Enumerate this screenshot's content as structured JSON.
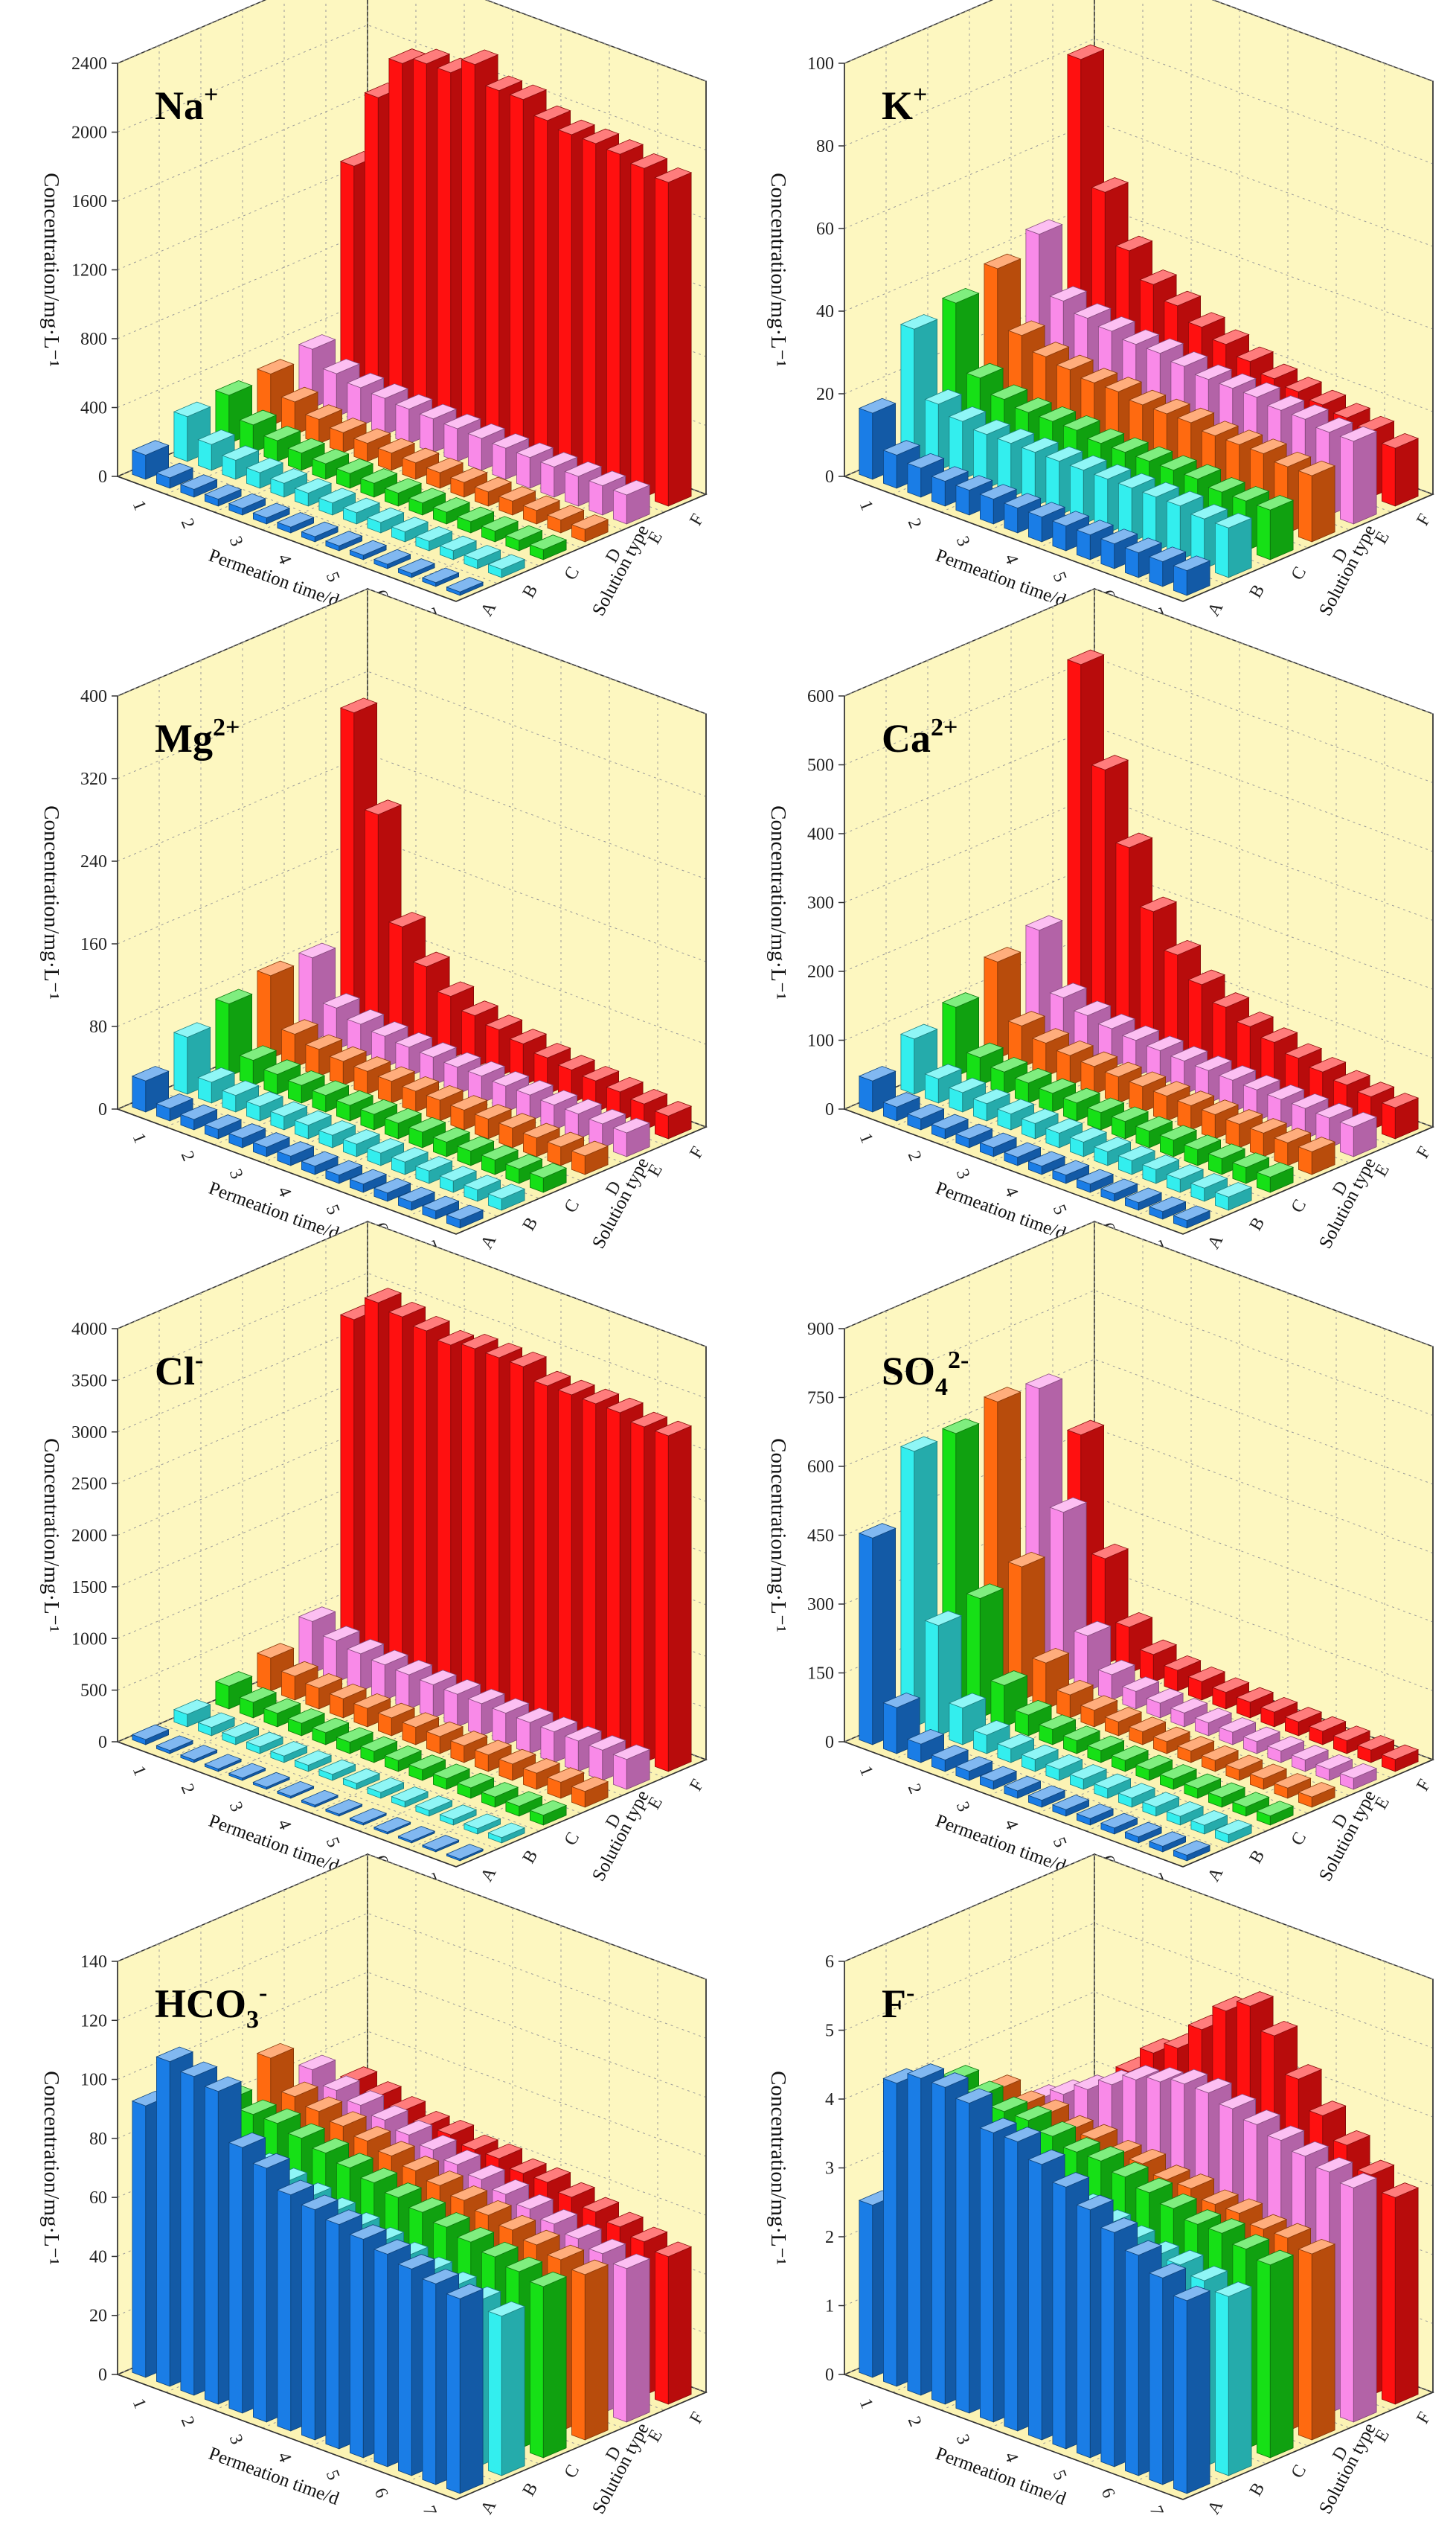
{
  "colors": {
    "A": "#1a7de6",
    "B": "#33eeee",
    "C": "#16e016",
    "D": "#ff6a10",
    "E": "#f98ae8",
    "F": "#ff1010"
  },
  "shared": {
    "xlabel": "Permeation time/d",
    "zlabel": "Solution type",
    "ylabel": "Concentration/mg·L⁻¹",
    "series_labels": [
      "A",
      "B",
      "C",
      "D",
      "E",
      "F"
    ],
    "time_tick_labels": [
      "1",
      "2",
      "3",
      "4",
      "5",
      "6",
      "7"
    ]
  },
  "chart_data": [
    {
      "type": "bar3d",
      "id": "na",
      "ion_base": "Na",
      "ion_sup": "+",
      "ion_sub": "",
      "ylim": [
        0,
        2400
      ],
      "yticks": [
        "0",
        "400",
        "800",
        "1200",
        "1600",
        "2000",
        "2400"
      ],
      "series": [
        {
          "name": "A",
          "values": [
            140,
            60,
            45,
            40,
            38,
            35,
            33,
            30,
            28,
            26,
            25,
            24,
            22,
            20
          ]
        },
        {
          "name": "B",
          "values": [
            260,
            150,
            110,
            90,
            80,
            75,
            70,
            65,
            60,
            58,
            55,
            52,
            50,
            48
          ]
        },
        {
          "name": "C",
          "values": [
            280,
            160,
            120,
            100,
            90,
            85,
            80,
            75,
            70,
            68,
            65,
            62,
            60,
            58
          ]
        },
        {
          "name": "D",
          "values": [
            300,
            190,
            140,
            115,
            105,
            100,
            95,
            90,
            85,
            82,
            80,
            78,
            75,
            72
          ]
        },
        {
          "name": "E",
          "values": [
            340,
            250,
            220,
            210,
            200,
            195,
            190,
            185,
            180,
            178,
            175,
            172,
            170,
            168
          ]
        },
        {
          "name": "F",
          "values": [
            1300,
            1750,
            2000,
            2050,
            2050,
            2150,
            2050,
            2050,
            1980,
            1950,
            1950,
            1940,
            1910,
            1880
          ]
        }
      ]
    },
    {
      "type": "bar3d",
      "id": "k",
      "ion_base": "K",
      "ion_sup": "+",
      "ion_sub": "",
      "ylim": [
        0,
        100
      ],
      "yticks": [
        "0",
        "20",
        "40",
        "60",
        "80",
        "100"
      ],
      "series": [
        {
          "name": "A",
          "values": [
            16,
            8,
            7,
            6,
            6,
            6,
            6,
            6,
            6,
            6,
            6,
            6,
            6,
            6
          ]
        },
        {
          "name": "B",
          "values": [
            32,
            16,
            14,
            13,
            13,
            13,
            13,
            13,
            13,
            13,
            13,
            13,
            12,
            12
          ]
        },
        {
          "name": "C",
          "values": [
            34,
            18,
            15,
            14,
            14,
            14,
            13,
            13,
            13,
            13,
            13,
            12,
            12,
            12
          ]
        },
        {
          "name": "D",
          "values": [
            38,
            24,
            21,
            20,
            19,
            19,
            18,
            18,
            18,
            17,
            17,
            17,
            16,
            16
          ]
        },
        {
          "name": "E",
          "values": [
            42,
            28,
            26,
            25,
            24,
            24,
            23,
            22,
            22,
            22,
            21,
            21,
            20,
            20
          ]
        },
        {
          "name": "F",
          "values": [
            80,
            50,
            38,
            32,
            29,
            26,
            24,
            22,
            20,
            19,
            18,
            17,
            16,
            14
          ]
        }
      ]
    },
    {
      "type": "bar3d",
      "id": "mg",
      "ion_base": "Mg",
      "ion_sup": "2+",
      "ion_sub": "",
      "ylim": [
        0,
        400
      ],
      "yticks": [
        "0",
        "80",
        "160",
        "240",
        "320",
        "400"
      ],
      "series": [
        {
          "name": "A",
          "values": [
            30,
            12,
            10,
            9,
            9,
            9,
            9,
            8,
            8,
            8,
            8,
            8,
            8,
            8
          ]
        },
        {
          "name": "B",
          "values": [
            55,
            20,
            16,
            14,
            13,
            13,
            12,
            12,
            12,
            12,
            12,
            11,
            11,
            11
          ]
        },
        {
          "name": "C",
          "values": [
            70,
            24,
            19,
            17,
            16,
            15,
            15,
            15,
            15,
            14,
            14,
            14,
            14,
            14
          ]
        },
        {
          "name": "D",
          "values": [
            80,
            32,
            26,
            23,
            22,
            21,
            20,
            20,
            19,
            19,
            19,
            18,
            18,
            18
          ]
        },
        {
          "name": "E",
          "values": [
            80,
            40,
            33,
            30,
            28,
            27,
            26,
            26,
            25,
            25,
            24,
            24,
            23,
            23
          ]
        },
        {
          "name": "F",
          "values": [
            300,
            210,
            110,
            80,
            60,
            50,
            45,
            40,
            35,
            32,
            30,
            28,
            25,
            22
          ]
        }
      ]
    },
    {
      "type": "bar3d",
      "id": "ca",
      "ion_base": "Ca",
      "ion_sup": "2+",
      "ion_sub": "",
      "ylim": [
        0,
        600
      ],
      "yticks": [
        "0",
        "100",
        "200",
        "300",
        "400",
        "500",
        "600"
      ],
      "series": [
        {
          "name": "A",
          "values": [
            45,
            20,
            16,
            14,
            13,
            13,
            12,
            12,
            12,
            12,
            11,
            11,
            11,
            11
          ]
        },
        {
          "name": "B",
          "values": [
            80,
            35,
            28,
            25,
            23,
            22,
            21,
            21,
            20,
            20,
            20,
            19,
            19,
            19
          ]
        },
        {
          "name": "C",
          "values": [
            100,
            40,
            32,
            29,
            27,
            26,
            25,
            25,
            24,
            24,
            23,
            23,
            23,
            22
          ]
        },
        {
          "name": "D",
          "values": [
            140,
            60,
            48,
            43,
            40,
            38,
            37,
            36,
            35,
            35,
            34,
            34,
            33,
            33
          ]
        },
        {
          "name": "E",
          "values": [
            160,
            75,
            62,
            56,
            52,
            50,
            48,
            47,
            46,
            45,
            44,
            44,
            43,
            43
          ]
        },
        {
          "name": "F",
          "values": [
            520,
            380,
            280,
            200,
            150,
            120,
            100,
            85,
            75,
            65,
            58,
            52,
            48,
            45
          ]
        }
      ]
    },
    {
      "type": "bar3d",
      "id": "cl",
      "ion_base": "Cl",
      "ion_sup": "-",
      "ion_sub": "",
      "ylim": [
        0,
        4000
      ],
      "yticks": [
        "0",
        "500",
        "1000",
        "1500",
        "2000",
        "2500",
        "3000",
        "3500",
        "4000"
      ],
      "series": [
        {
          "name": "A",
          "values": [
            50,
            30,
            26,
            24,
            22,
            21,
            20,
            20,
            19,
            19,
            18,
            18,
            18,
            17
          ]
        },
        {
          "name": "B",
          "values": [
            120,
            80,
            70,
            65,
            62,
            60,
            58,
            57,
            56,
            55,
            54,
            53,
            52,
            51
          ]
        },
        {
          "name": "C",
          "values": [
            220,
            150,
            130,
            120,
            115,
            110,
            108,
            106,
            104,
            102,
            100,
            98,
            96,
            95
          ]
        },
        {
          "name": "D",
          "values": [
            320,
            230,
            200,
            185,
            178,
            172,
            168,
            165,
            162,
            160,
            158,
            156,
            154,
            152
          ]
        },
        {
          "name": "E",
          "values": [
            500,
            400,
            360,
            340,
            330,
            320,
            315,
            310,
            305,
            300,
            298,
            295,
            292,
            290
          ]
        },
        {
          "name": "F",
          "values": [
            3250,
            3500,
            3450,
            3400,
            3350,
            3400,
            3400,
            3400,
            3300,
            3300,
            3300,
            3300,
            3250,
            3250
          ]
        }
      ]
    },
    {
      "type": "bar3d",
      "id": "so4",
      "ion_base": "SO",
      "ion_sup": "2-",
      "ion_sub": "4",
      "ylim": [
        0,
        900
      ],
      "yticks": [
        "0",
        "150",
        "300",
        "450",
        "600",
        "750",
        "900"
      ],
      "series": [
        {
          "name": "A",
          "values": [
            450,
            100,
            40,
            25,
            20,
            18,
            16,
            15,
            14,
            14,
            13,
            13,
            12,
            12
          ]
        },
        {
          "name": "B",
          "values": [
            600,
            240,
            80,
            40,
            30,
            26,
            24,
            22,
            21,
            20,
            20,
            19,
            19,
            18
          ]
        },
        {
          "name": "C",
          "values": [
            600,
            260,
            90,
            45,
            33,
            28,
            26,
            24,
            23,
            22,
            21,
            21,
            20,
            20
          ]
        },
        {
          "name": "D",
          "values": [
            630,
            290,
            100,
            50,
            36,
            30,
            28,
            26,
            25,
            24,
            23,
            23,
            22,
            22
          ]
        },
        {
          "name": "E",
          "values": [
            620,
            370,
            120,
            55,
            38,
            32,
            30,
            28,
            27,
            26,
            25,
            25,
            24,
            24
          ]
        },
        {
          "name": "F",
          "values": [
            480,
            230,
            100,
            60,
            45,
            40,
            36,
            34,
            32,
            30,
            29,
            28,
            27,
            26
          ]
        }
      ]
    },
    {
      "type": "bar3d",
      "id": "hco3",
      "ion_base": "HCO",
      "ion_sup": "-",
      "ion_sub": "3",
      "ylim": [
        0,
        140
      ],
      "yticks": [
        "0",
        "20",
        "40",
        "60",
        "80",
        "100",
        "120",
        "140"
      ],
      "series": [
        {
          "name": "A",
          "values": [
            92,
            110,
            108,
            106,
            90,
            86,
            80,
            78,
            76,
            74,
            72,
            70,
            68,
            66
          ]
        },
        {
          "name": "B",
          "values": [
            80,
            78,
            76,
            74,
            72,
            70,
            68,
            66,
            64,
            62,
            60,
            58,
            56,
            54
          ]
        },
        {
          "name": "C",
          "values": [
            82,
            80,
            80,
            78,
            76,
            74,
            72,
            70,
            68,
            66,
            64,
            62,
            60,
            58
          ]
        },
        {
          "name": "D",
          "values": [
            90,
            80,
            78,
            76,
            74,
            72,
            70,
            68,
            66,
            64,
            62,
            60,
            58,
            56
          ]
        },
        {
          "name": "E",
          "values": [
            80,
            76,
            74,
            72,
            70,
            68,
            66,
            64,
            62,
            60,
            58,
            56,
            54,
            52
          ]
        },
        {
          "name": "F",
          "values": [
            70,
            68,
            66,
            64,
            64,
            62,
            62,
            60,
            60,
            58,
            56,
            54,
            52,
            50
          ]
        }
      ]
    },
    {
      "type": "bar3d",
      "id": "f",
      "ion_base": "F",
      "ion_sup": "-",
      "ion_sub": "",
      "ylim": [
        0,
        6
      ],
      "yticks": [
        "0",
        "1",
        "2",
        "3",
        "4",
        "5",
        "6"
      ],
      "series": [
        {
          "name": "A",
          "values": [
            2.5,
            4.4,
            4.6,
            4.6,
            4.5,
            4.2,
            4.2,
            4.0,
            3.8,
            3.6,
            3.4,
            3.2,
            3.0,
            2.8
          ]
        },
        {
          "name": "B",
          "values": [
            3.6,
            3.5,
            3.4,
            3.4,
            3.3,
            3.2,
            3.2,
            3.1,
            3.0,
            2.9,
            2.8,
            2.8,
            2.7,
            2.6
          ]
        },
        {
          "name": "C",
          "values": [
            3.8,
            3.7,
            3.6,
            3.6,
            3.5,
            3.4,
            3.4,
            3.3,
            3.2,
            3.1,
            3.0,
            3.0,
            2.9,
            2.8
          ]
        },
        {
          "name": "D",
          "values": [
            3.4,
            3.3,
            3.3,
            3.2,
            3.2,
            3.1,
            3.1,
            3.0,
            3.0,
            2.9,
            2.9,
            2.8,
            2.8,
            2.7
          ]
        },
        {
          "name": "E",
          "values": [
            3.0,
            3.2,
            3.4,
            3.6,
            3.8,
            3.9,
            4.0,
            4.0,
            3.9,
            3.8,
            3.7,
            3.6,
            3.5,
            3.4
          ]
        },
        {
          "name": "F",
          "values": [
            2.5,
            3.0,
            3.4,
            3.8,
            4.0,
            4.4,
            4.8,
            5.0,
            4.7,
            4.2,
            3.8,
            3.5,
            3.2,
            3.0
          ]
        }
      ]
    }
  ]
}
